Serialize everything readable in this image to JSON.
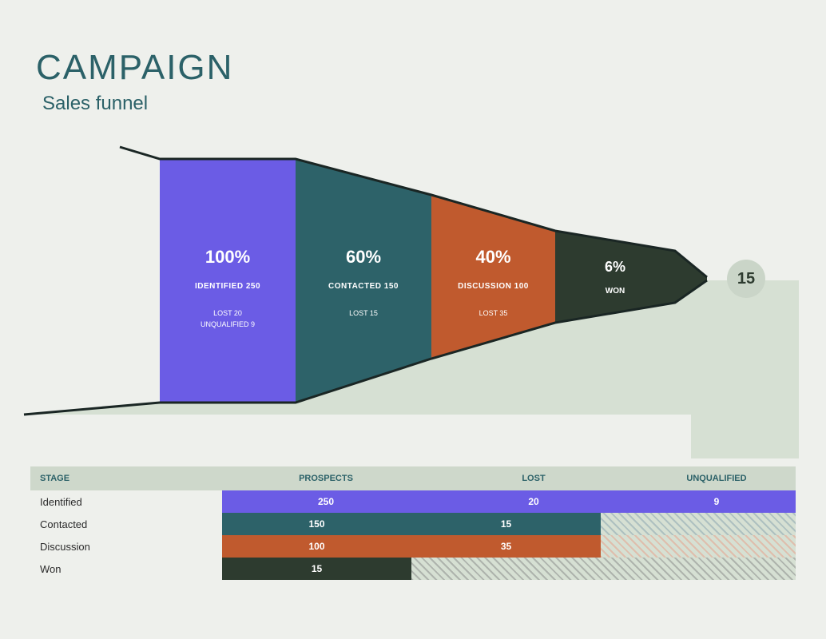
{
  "header": {
    "title": "CAMPAIGN",
    "subtitle": "Sales funnel"
  },
  "funnel": {
    "type": "funnel",
    "background_color": "#eef0ec",
    "outline_color": "#1a2624",
    "base_fill": "#d6e0d3",
    "final_badge_bg": "#cad5c8",
    "final_badge_color": "#2d3b2f",
    "final_value": "15",
    "segments": [
      {
        "pct": "100%",
        "main": "IDENTIFIED 250",
        "sub1": "LOST 20",
        "sub2": "UNQUALIFIED 9",
        "color": "#6b5ce5"
      },
      {
        "pct": "60%",
        "main": "CONTACTED 150",
        "sub1": "LOST 15",
        "sub2": "",
        "color": "#2d6269"
      },
      {
        "pct": "40%",
        "main": "DISCUSSION 100",
        "sub1": "LOST 35",
        "sub2": "",
        "color": "#c05a2e"
      },
      {
        "pct": "6%",
        "main": "WON",
        "sub1": "",
        "sub2": "",
        "color": "#2d3b2f"
      }
    ]
  },
  "table": {
    "headers": {
      "stage": "STAGE",
      "prospects": "PROSPECTS",
      "lost": "LOST",
      "unqualified": "UNQUALIFIED"
    },
    "rows": [
      {
        "stage": "Identified",
        "prospects": "250",
        "lost": "20",
        "unqualified": "9",
        "color": "#6b5ce5",
        "fill_pct": 100
      },
      {
        "stage": "Contacted",
        "prospects": "150",
        "lost": "15",
        "unqualified": "",
        "color": "#2d6269",
        "fill_pct": 66
      },
      {
        "stage": "Discussion",
        "prospects": "100",
        "lost": "35",
        "unqualified": "",
        "color": "#c05a2e",
        "fill_pct": 66
      },
      {
        "stage": "Won",
        "prospects": "15",
        "lost": "",
        "unqualified": "",
        "color": "#2d3b2f",
        "fill_pct": 33
      }
    ],
    "hatch_light": "#d6e0d3",
    "hatch_stroke_default": "#9aa79a"
  }
}
